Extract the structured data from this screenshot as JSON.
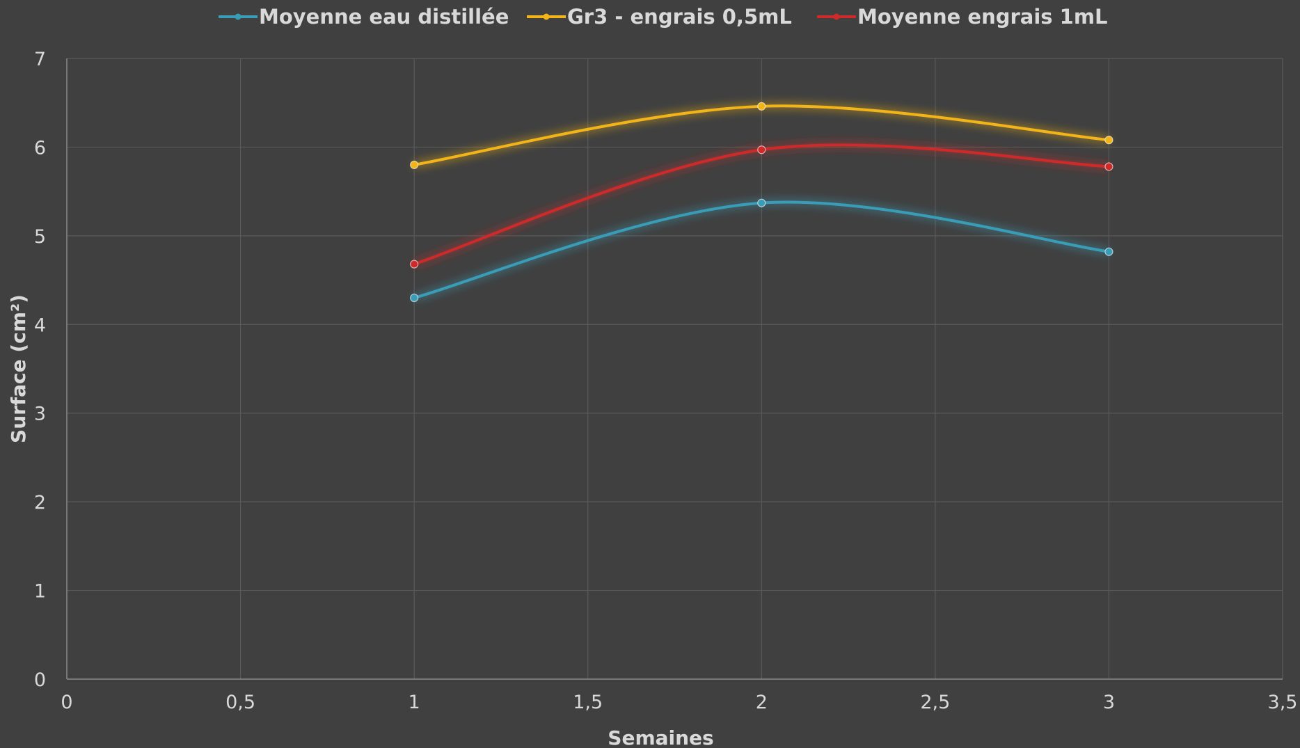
{
  "chart_data": {
    "type": "line",
    "title": "",
    "xlabel": "Semaines",
    "ylabel": "Surface (cm²)",
    "xlim": [
      0,
      3.5
    ],
    "ylim": [
      0,
      7
    ],
    "x_ticks": [
      0,
      0.5,
      1,
      1.5,
      2,
      2.5,
      3,
      3.5
    ],
    "x_tick_labels": [
      "0",
      "0,5",
      "1",
      "1,5",
      "2",
      "2,5",
      "3",
      "3,5"
    ],
    "y_ticks": [
      0,
      1,
      2,
      3,
      4,
      5,
      6,
      7
    ],
    "y_tick_labels": [
      "0",
      "1",
      "2",
      "3",
      "4",
      "5",
      "6",
      "7"
    ],
    "grid": true,
    "smooth": true,
    "legend_position": "top",
    "background": "#404040",
    "series": [
      {
        "name": "Moyenne eau distillée",
        "color": "#3a9db8",
        "x": [
          1,
          2,
          3
        ],
        "y": [
          4.3,
          5.37,
          4.82
        ]
      },
      {
        "name": "Gr3 - engrais 0,5mL",
        "color": "#f2b417",
        "x": [
          1,
          2,
          3
        ],
        "y": [
          5.8,
          6.46,
          6.08
        ]
      },
      {
        "name": "Moyenne engrais 1mL",
        "color": "#cf2a2a",
        "x": [
          1,
          2,
          3
        ],
        "y": [
          4.68,
          5.97,
          5.78
        ]
      }
    ]
  }
}
